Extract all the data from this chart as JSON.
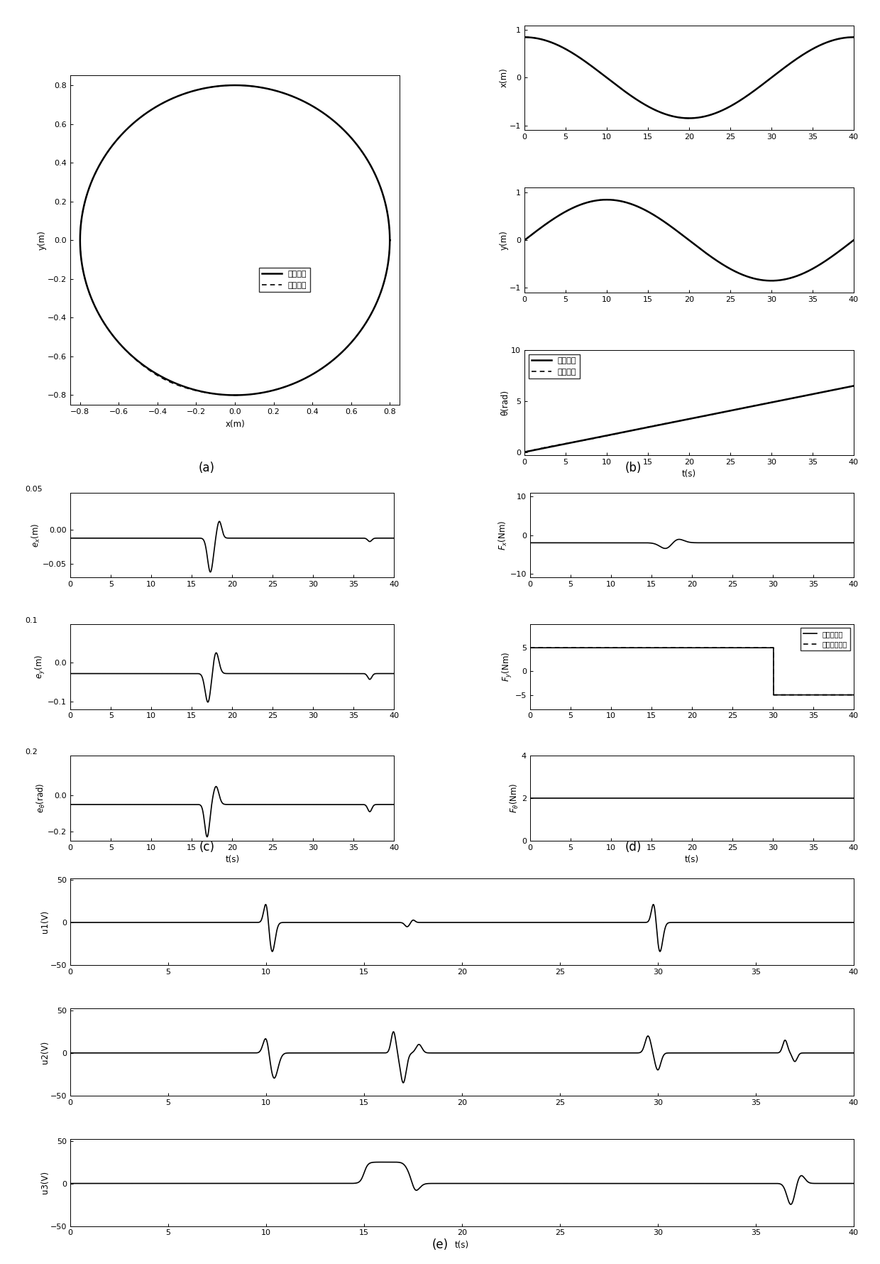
{
  "fig_width": 12.4,
  "fig_height": 17.8,
  "bg_color": "#ffffff",
  "label_a": "(a)",
  "label_b": "(b)",
  "label_c": "(c)",
  "label_d": "(d)",
  "label_e": "(e)",
  "legend_ref": "参考轨迹",
  "legend_act": "实际轨迹",
  "legend_actual": "实际拆动値",
  "legend_est": "观测器估计値"
}
